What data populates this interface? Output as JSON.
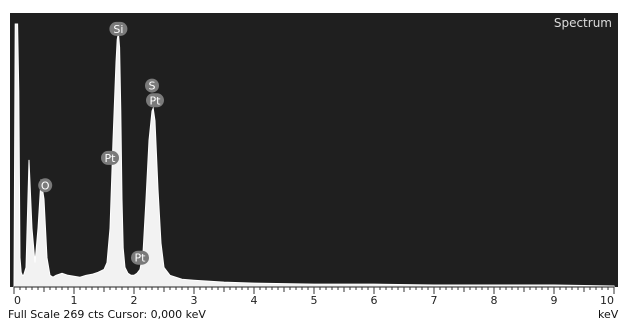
{
  "chart_data": {
    "type": "line",
    "title": "Spectrum",
    "x_unit": "keV",
    "xlim": [
      0,
      10
    ],
    "x_ticks": [
      "0",
      "1",
      "2",
      "3",
      "4",
      "5",
      "6",
      "7",
      "8",
      "9",
      "10"
    ],
    "full_scale_counts": 269,
    "series": [
      {
        "x": [
          0.0,
          0.02,
          0.04,
          0.06,
          0.08,
          0.1,
          0.12,
          0.14,
          0.16,
          0.2,
          0.25,
          0.3,
          0.35,
          0.4,
          0.45,
          0.5,
          0.55,
          0.6,
          0.65,
          0.7,
          0.8,
          0.9,
          1.0,
          1.1,
          1.2,
          1.3,
          1.4,
          1.5,
          1.55,
          1.6,
          1.65,
          1.7,
          1.72,
          1.74,
          1.76,
          1.78,
          1.8,
          1.82,
          1.85,
          1.9,
          1.95,
          2.0,
          2.05,
          2.1,
          2.15,
          2.2,
          2.25,
          2.3,
          2.32,
          2.35,
          2.4,
          2.45,
          2.5,
          2.6,
          2.8,
          3.0,
          3.5,
          4.0,
          5.0,
          6.0,
          7.0,
          8.0,
          9.0,
          10.0
        ],
        "y": [
          0,
          269,
          269,
          269,
          200,
          30,
          15,
          12,
          12,
          20,
          130,
          60,
          25,
          60,
          110,
          90,
          30,
          12,
          10,
          12,
          14,
          12,
          11,
          10,
          12,
          13,
          15,
          18,
          25,
          60,
          150,
          230,
          253,
          260,
          245,
          180,
          90,
          40,
          20,
          14,
          12,
          12,
          14,
          18,
          35,
          90,
          150,
          180,
          183,
          170,
          100,
          45,
          20,
          12,
          8,
          7,
          5,
          4,
          3,
          3,
          2,
          2,
          2,
          1
        ]
      }
    ],
    "annotations": [
      {
        "label": "O",
        "x": 0.52,
        "y": 104
      },
      {
        "label": "Pt",
        "x": 1.6,
        "y": 132
      },
      {
        "label": "Si",
        "x": 1.74,
        "y": 264
      },
      {
        "label": "S",
        "x": 2.3,
        "y": 206
      },
      {
        "label": "Pt",
        "x": 2.35,
        "y": 191
      },
      {
        "label": "Pt",
        "x": 2.1,
        "y": 30
      }
    ]
  },
  "footer": {
    "full_scale_text": "Full Scale 269 cts  Cursor: 0,000 keV",
    "unit_text": "keV"
  }
}
